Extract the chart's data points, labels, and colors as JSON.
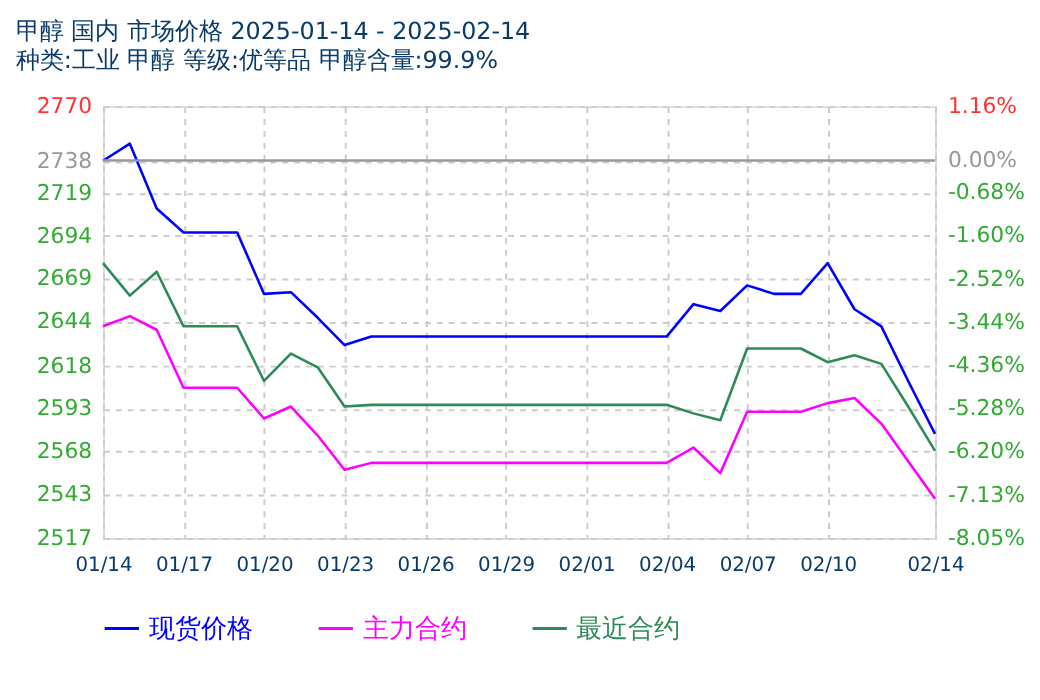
{
  "chart_data": {
    "type": "line",
    "title": "甲醇 国内 市场价格 2025-01-14 - 2025-02-14",
    "subtitle": "种类:工业 甲醇 等级:优等品 甲醇含量:99.9%",
    "x": [
      "--01-14",
      "--01-15",
      "--01-16",
      "--01-17",
      "--01-18",
      "--01-19",
      "--01-20",
      "--01-21",
      "--01-22",
      "--01-23",
      "--01-24",
      "--01-25",
      "--01-26",
      "--01-27",
      "--01-28",
      "--01-29",
      "--01-30",
      "--01-31",
      "--02-01",
      "--02-02",
      "--02-03",
      "--02-04",
      "--02-05",
      "--02-06",
      "--02-07",
      "--02-08",
      "--02-09",
      "--02-10",
      "--02-11",
      "--02-12",
      "--02-13",
      "--02-14"
    ],
    "series": [
      {
        "name": "现货价格",
        "color": "#0000ff",
        "values": [
          2738,
          2748,
          2710,
          2696,
          2696,
          2696,
          2660,
          2661,
          2646,
          2630,
          2635,
          2635,
          2635,
          2635,
          2635,
          2635,
          2635,
          2635,
          2635,
          2635,
          2635,
          2635,
          2654,
          2650,
          2665,
          2660,
          2660,
          2678,
          2651,
          2641,
          2609,
          2578
        ]
      },
      {
        "name": "主力合约",
        "color": "#ff00ff",
        "values": [
          2641,
          2647,
          2639,
          2605,
          2605,
          2605,
          2587,
          2594,
          2577,
          2557,
          2561,
          2561,
          2561,
          2561,
          2561,
          2561,
          2561,
          2561,
          2561,
          2561,
          2561,
          2561,
          2570,
          2555,
          2591,
          2591,
          2591,
          2596,
          2599,
          2584,
          2562,
          2540
        ]
      },
      {
        "name": "最近合约",
        "color": "#2e8b57",
        "values": [
          2678,
          2659,
          2673,
          2641,
          2641,
          2641,
          2609,
          2625,
          2617,
          2594,
          2595,
          2595,
          2595,
          2595,
          2595,
          2595,
          2595,
          2595,
          2595,
          2595,
          2595,
          2595,
          2590,
          2586,
          2628,
          2628,
          2628,
          2620,
          2624,
          2619,
          2594,
          2568
        ]
      }
    ],
    "xlim": [
      "--01-14",
      "--02-14"
    ],
    "xticks": [
      {
        "value": "--01-14",
        "label": "01/14"
      },
      {
        "value": "--01-17",
        "label": "01/17"
      },
      {
        "value": "--01-20",
        "label": "01/20"
      },
      {
        "value": "--01-23",
        "label": "01/23"
      },
      {
        "value": "--01-26",
        "label": "01/26"
      },
      {
        "value": "--01-29",
        "label": "01/29"
      },
      {
        "value": "--02-01",
        "label": "02/01"
      },
      {
        "value": "--02-04",
        "label": "02/04"
      },
      {
        "value": "--02-07",
        "label": "02/07"
      },
      {
        "value": "--02-10",
        "label": "02/10"
      },
      {
        "value": "--02-14",
        "label": "02/14"
      }
    ],
    "ylim": [
      2517,
      2770
    ],
    "yticks": [
      2770,
      2738,
      2719,
      2694,
      2669,
      2644,
      2618,
      2593,
      2568,
      2543,
      2517
    ],
    "y2lim": [
      -8.05,
      1.16
    ],
    "y2ticks": [
      {
        "value": 1.16,
        "label": "1.16%"
      },
      {
        "value": 0,
        "label": "0.00%"
      },
      {
        "value": -0.68,
        "label": "-0.68%"
      },
      {
        "value": -1.6,
        "label": "-1.60%"
      },
      {
        "value": -2.52,
        "label": "-2.52%"
      },
      {
        "value": -3.44,
        "label": "-3.44%"
      },
      {
        "value": -4.36,
        "label": "-4.36%"
      },
      {
        "value": -5.28,
        "label": "-5.28%"
      },
      {
        "value": -6.2,
        "label": "-6.20%"
      },
      {
        "value": -7.13,
        "label": "-7.13%"
      },
      {
        "value": -8.05,
        "label": "-8.05%"
      }
    ],
    "ref_lines": [
      {
        "axis": "y2",
        "value": 0,
        "color": "#999999",
        "line_style": "solid"
      }
    ],
    "grid": true,
    "legend": "bottom",
    "marker": "none",
    "line_style": "solid"
  }
}
